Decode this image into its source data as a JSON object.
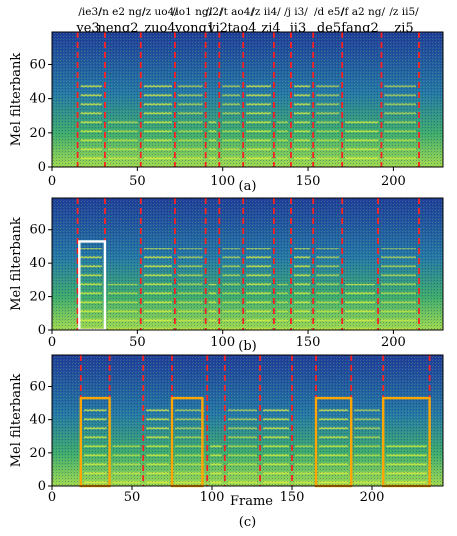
{
  "chart_data": [
    {
      "type": "heatmap",
      "panel_label": "(a)",
      "ylabel": "Mel filterbank",
      "xlabel": "",
      "x_ticks": [
        "0",
        "50",
        "100",
        "150",
        "200"
      ],
      "y_ticks": [
        "0",
        "20",
        "40",
        "60"
      ],
      "xlim": [
        0,
        225
      ],
      "ylim": [
        0,
        79
      ],
      "phonemes": [
        "/ie3/",
        "/n e2 ng/",
        "/z uo4/",
        "/io1 ng/",
        "/i2/",
        "/t ao4/",
        "/z ii4/",
        "/j i3/",
        "/d e5/",
        "/f a2 ng/",
        "/z ii5/"
      ],
      "syllables": [
        "ye3",
        "neng2",
        "zuo4",
        "yong1",
        "yi2",
        "tao4",
        "zi4",
        "ji3",
        "de5",
        "fang2",
        "zi5"
      ],
      "boundaries": [
        15,
        31,
        52,
        72,
        90,
        98,
        112,
        130,
        140,
        153,
        170,
        193,
        215
      ],
      "boxes": []
    },
    {
      "type": "heatmap",
      "panel_label": "(b)",
      "ylabel": "Mel filterbank",
      "xlabel": "",
      "x_ticks": [
        "0",
        "50",
        "100",
        "150",
        "200"
      ],
      "y_ticks": [
        "0",
        "20",
        "40",
        "60"
      ],
      "xlim": [
        0,
        225
      ],
      "ylim": [
        0,
        79
      ],
      "boundaries": [
        15,
        31,
        52,
        72,
        90,
        98,
        112,
        130,
        140,
        153,
        170,
        191,
        215
      ],
      "boxes": [
        {
          "x0": 16,
          "x1": 31,
          "y0": 0,
          "y1": 53,
          "color": "#ffffff"
        }
      ]
    },
    {
      "type": "heatmap",
      "panel_label": "(c)",
      "ylabel": "Mel filterbank",
      "xlabel": "Frame",
      "x_ticks": [
        "0",
        "50",
        "100",
        "150",
        "200"
      ],
      "y_ticks": [
        "0",
        "20",
        "40",
        "60"
      ],
      "xlim": [
        0,
        245
      ],
      "ylim": [
        0,
        79
      ],
      "boundaries": [
        18,
        36,
        57,
        75,
        97,
        108,
        130,
        150,
        165,
        187,
        207,
        236
      ],
      "boxes": [
        {
          "x0": 18,
          "x1": 36,
          "y0": 0,
          "y1": 53,
          "color": "#ffa500"
        },
        {
          "x0": 75,
          "x1": 94,
          "y0": 0,
          "y1": 53,
          "color": "#ffa500"
        },
        {
          "x0": 165,
          "x1": 187,
          "y0": 0,
          "y1": 53,
          "color": "#ffa500"
        },
        {
          "x0": 207,
          "x1": 236,
          "y0": 0,
          "y1": 53,
          "color": "#ffa500"
        }
      ]
    }
  ],
  "colors": {
    "boundary_line": "#ff2020",
    "spectrogram_low": "#1f3a9a",
    "spectrogram_high": "#ffff40"
  }
}
